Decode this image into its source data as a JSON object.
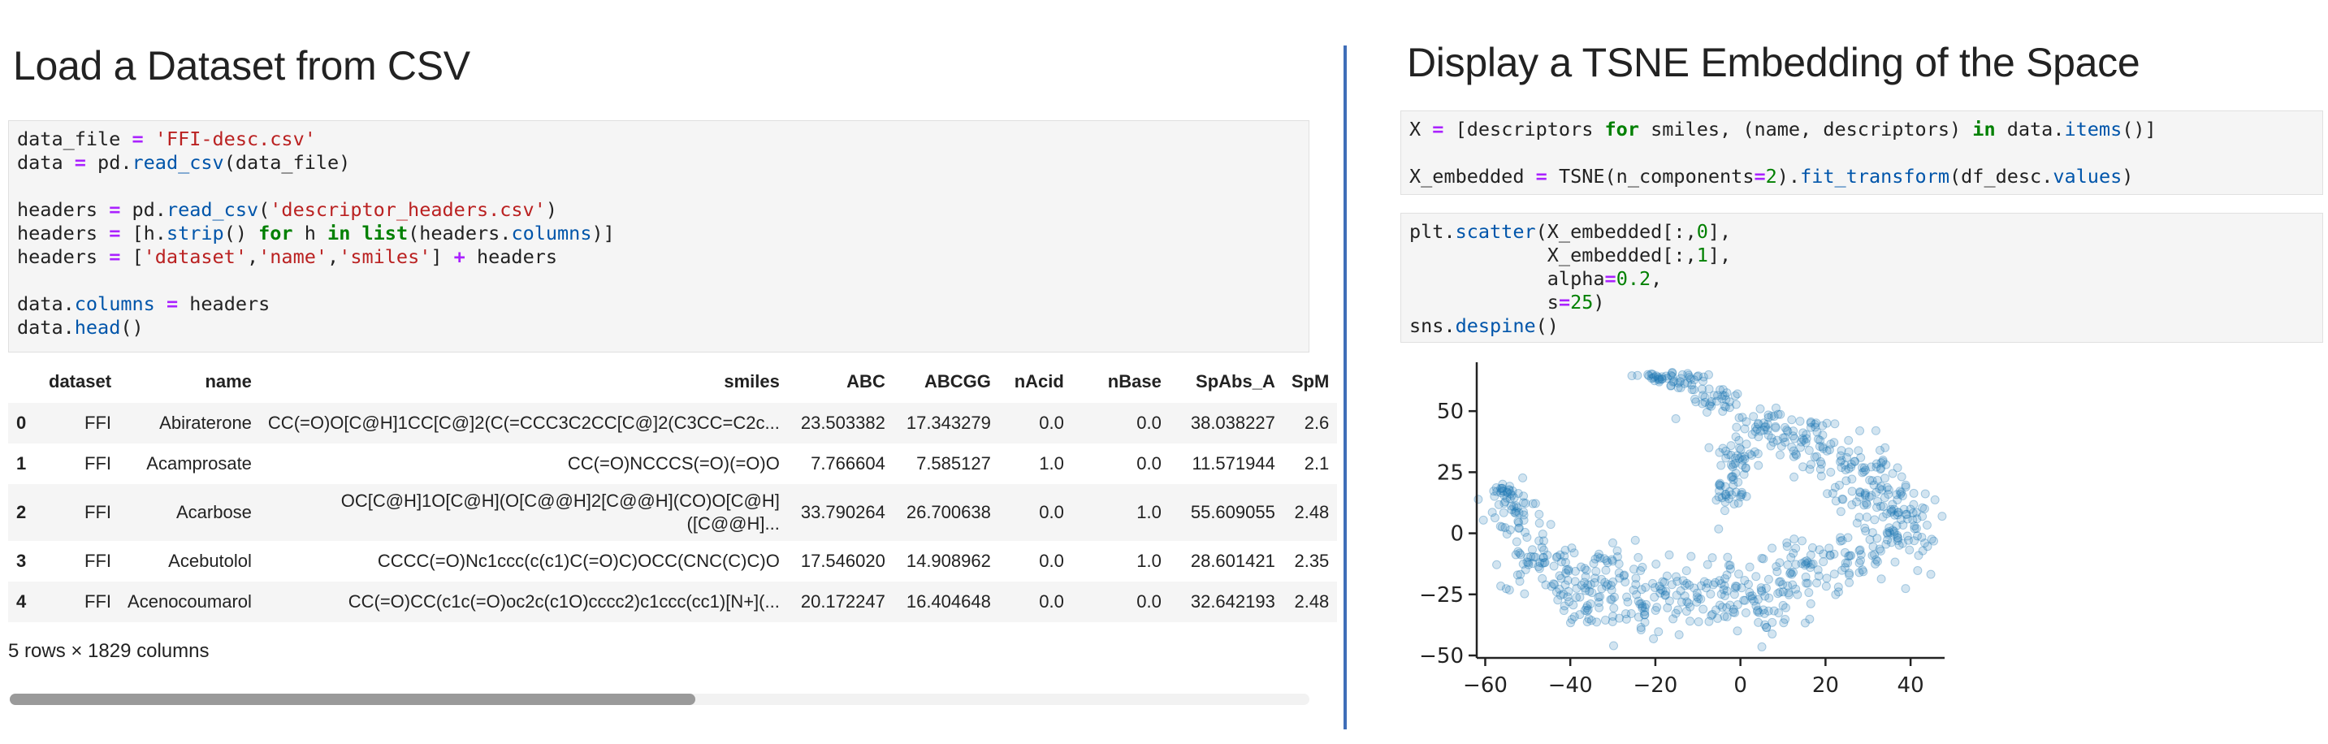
{
  "left": {
    "title": "Load a Dataset from CSV",
    "code_lines": [
      [
        [
          "data_file ",
          ""
        ],
        [
          "=",
          "op"
        ],
        [
          " ",
          ""
        ],
        [
          "'FFI-desc.csv'",
          "str"
        ]
      ],
      [
        [
          "data ",
          ""
        ],
        [
          "=",
          "op"
        ],
        [
          " pd.",
          ""
        ],
        [
          "read_csv",
          "attr"
        ],
        [
          "(data_file)",
          ""
        ]
      ],
      [],
      [
        [
          "headers ",
          ""
        ],
        [
          "=",
          "op"
        ],
        [
          " pd.",
          ""
        ],
        [
          "read_csv",
          "attr"
        ],
        [
          "(",
          ""
        ],
        [
          "'descriptor_headers.csv'",
          "str"
        ],
        [
          ")",
          ""
        ]
      ],
      [
        [
          "headers ",
          ""
        ],
        [
          "=",
          "op"
        ],
        [
          " [h.",
          ""
        ],
        [
          "strip",
          "attr"
        ],
        [
          "() ",
          ""
        ],
        [
          "for",
          "kw"
        ],
        [
          " h ",
          ""
        ],
        [
          "in",
          "kw"
        ],
        [
          " ",
          ""
        ],
        [
          "list",
          "kw"
        ],
        [
          "(headers.",
          ""
        ],
        [
          "columns",
          "attr"
        ],
        [
          ")]",
          ""
        ]
      ],
      [
        [
          "headers ",
          ""
        ],
        [
          "=",
          "op"
        ],
        [
          " [",
          ""
        ],
        [
          "'dataset'",
          "str"
        ],
        [
          ",",
          ""
        ],
        [
          "'name'",
          "str"
        ],
        [
          ",",
          ""
        ],
        [
          "'smiles'",
          "str"
        ],
        [
          "] ",
          ""
        ],
        [
          "+",
          "op"
        ],
        [
          " headers",
          ""
        ]
      ],
      [],
      [
        [
          "data.",
          ""
        ],
        [
          "columns",
          "attr"
        ],
        [
          " ",
          ""
        ],
        [
          "=",
          "op"
        ],
        [
          " headers",
          ""
        ]
      ],
      [
        [
          "data.",
          ""
        ],
        [
          "head",
          "attr"
        ],
        [
          "()",
          ""
        ]
      ]
    ],
    "table": {
      "headers": [
        "",
        "dataset",
        "name",
        "smiles",
        "ABC",
        "ABCGG",
        "nAcid",
        "nBase",
        "SpAbs_A",
        "SpM"
      ],
      "rows": [
        [
          "0",
          "FFI",
          "Abiraterone",
          "CC(=O)O[C@H]1CC[C@]2(C(=CCC3C2CC[C@]2(C3CC=C2c...",
          "23.503382",
          "17.343279",
          "0.0",
          "0.0",
          "38.038227",
          "2.6"
        ],
        [
          "1",
          "FFI",
          "Acamprosate",
          "CC(=O)NCCCS(=O)(=O)O",
          "7.766604",
          "7.585127",
          "1.0",
          "0.0",
          "11.571944",
          "2.1"
        ],
        [
          "2",
          "FFI",
          "Acarbose",
          "OC[C@H]1O[C@H](O[C@@H]2[C@@H](CO)O[C@H]([C@@H]...",
          "33.790264",
          "26.700638",
          "0.0",
          "1.0",
          "55.609055",
          "2.48"
        ],
        [
          "3",
          "FFI",
          "Acebutolol",
          "CCCC(=O)Nc1ccc(c(c1)C(=O)C)OCC(CNC(C)C)O",
          "17.546020",
          "14.908962",
          "0.0",
          "1.0",
          "28.601421",
          "2.35"
        ],
        [
          "4",
          "FFI",
          "Acenocoumarol",
          "CC(=O)CC(c1c(=O)oc2c(c1O)cccc2)c1ccc(cc1)[N+](...",
          "20.172247",
          "16.404648",
          "0.0",
          "0.0",
          "32.642193",
          "2.48"
        ]
      ],
      "smiles_row2_line1": "OC[C@H]1O[C@H](O[C@@H]2[C@@H](CO)O[C@H]",
      "smiles_row2_line2": "([C@@H]...",
      "summary": "5 rows × 1829 columns"
    }
  },
  "right": {
    "title": "Display a TSNE Embedding of the Space",
    "cell1_lines": [
      [
        [
          "X ",
          ""
        ],
        [
          "=",
          "op"
        ],
        [
          " [descriptors ",
          ""
        ],
        [
          "for",
          "kw"
        ],
        [
          " smiles, (name, descriptors) ",
          ""
        ],
        [
          "in",
          "kw"
        ],
        [
          " data.",
          ""
        ],
        [
          "items",
          "attr"
        ],
        [
          "()]",
          ""
        ]
      ],
      [],
      [
        [
          "X_embedded ",
          ""
        ],
        [
          "=",
          "op"
        ],
        [
          " TSNE(n_components",
          ""
        ],
        [
          "=",
          "op"
        ],
        [
          "2",
          "num"
        ],
        [
          ").",
          ""
        ],
        [
          "fit_transform",
          "attr"
        ],
        [
          "(df_desc.",
          ""
        ],
        [
          "values",
          "attr"
        ],
        [
          ")",
          ""
        ]
      ]
    ],
    "cell2_lines": [
      [
        [
          "plt.",
          ""
        ],
        [
          "scatter",
          "attr"
        ],
        [
          "(X_embedded[:,",
          ""
        ],
        [
          "0",
          "num"
        ],
        [
          "],",
          ""
        ]
      ],
      [
        [
          "            X_embedded[:,",
          ""
        ],
        [
          "1",
          "num"
        ],
        [
          "],",
          ""
        ]
      ],
      [
        [
          "            alpha",
          ""
        ],
        [
          "=",
          "op"
        ],
        [
          "0.2",
          "num"
        ],
        [
          ",",
          ""
        ]
      ],
      [
        [
          "            s",
          ""
        ],
        [
          "=",
          "op"
        ],
        [
          "25",
          "num"
        ],
        [
          ")",
          ""
        ]
      ],
      [
        [
          "sns.",
          ""
        ],
        [
          "despine",
          "attr"
        ],
        [
          "()",
          ""
        ]
      ]
    ]
  },
  "chart_data": {
    "type": "scatter",
    "title": "",
    "xlabel": "",
    "ylabel": "",
    "xlim": [
      -62,
      48
    ],
    "ylim": [
      -51,
      70
    ],
    "xticks": [
      -60,
      -40,
      -20,
      0,
      20,
      40
    ],
    "yticks": [
      -50,
      -25,
      0,
      25,
      50
    ],
    "color": "#1f77b4",
    "alpha": 0.2,
    "grid": false,
    "clusters": [
      {
        "x": -20,
        "y": 64,
        "sx": 3,
        "sy": 1.2,
        "n": 25
      },
      {
        "x": -12,
        "y": 62,
        "sx": 3,
        "sy": 2,
        "n": 25
      },
      {
        "x": -5,
        "y": 55,
        "sx": 3,
        "sy": 3,
        "n": 30
      },
      {
        "x": 5,
        "y": 45,
        "sx": 5,
        "sy": 4,
        "n": 40
      },
      {
        "x": 15,
        "y": 38,
        "sx": 5,
        "sy": 5,
        "n": 45
      },
      {
        "x": 0,
        "y": 32,
        "sx": 3,
        "sy": 3,
        "n": 25
      },
      {
        "x": -2,
        "y": 18,
        "sx": 2,
        "sy": 7,
        "n": 40
      },
      {
        "x": 25,
        "y": 28,
        "sx": 5,
        "sy": 6,
        "n": 50
      },
      {
        "x": 33,
        "y": 16,
        "sx": 5,
        "sy": 6,
        "n": 60
      },
      {
        "x": 38,
        "y": 2,
        "sx": 4,
        "sy": 6,
        "n": 55
      },
      {
        "x": 28,
        "y": -10,
        "sx": 6,
        "sy": 6,
        "n": 50
      },
      {
        "x": 15,
        "y": -15,
        "sx": 6,
        "sy": 6,
        "n": 50
      },
      {
        "x": 5,
        "y": -30,
        "sx": 6,
        "sy": 6,
        "n": 55
      },
      {
        "x": -8,
        "y": -22,
        "sx": 7,
        "sy": 6,
        "n": 60
      },
      {
        "x": -22,
        "y": -30,
        "sx": 7,
        "sy": 6,
        "n": 65
      },
      {
        "x": -38,
        "y": -25,
        "sx": 6,
        "sy": 7,
        "n": 60
      },
      {
        "x": -48,
        "y": -10,
        "sx": 4,
        "sy": 6,
        "n": 50
      },
      {
        "x": -54,
        "y": 8,
        "sx": 3,
        "sy": 6,
        "n": 45
      },
      {
        "x": -56,
        "y": 18,
        "sx": 2,
        "sy": 2,
        "n": 15
      },
      {
        "x": -30,
        "y": -12,
        "sx": 6,
        "sy": 5,
        "n": 35
      }
    ]
  }
}
